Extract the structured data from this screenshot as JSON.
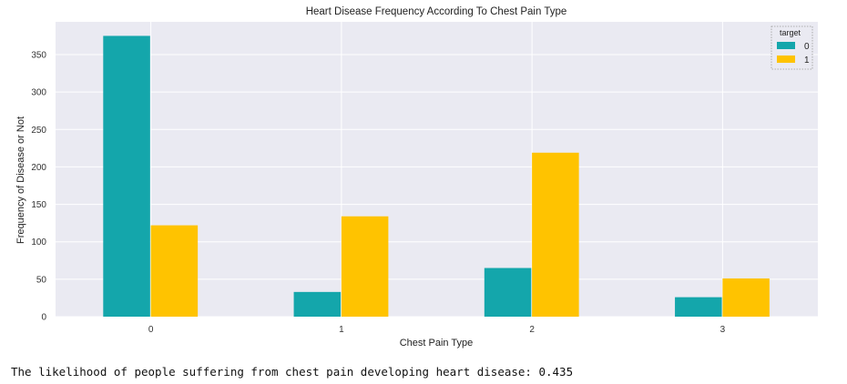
{
  "chart_data": {
    "type": "bar",
    "title": "Heart Disease Frequency According To Chest Pain Type",
    "xlabel": "Chest Pain Type",
    "ylabel": "Frequency of Disease or Not",
    "categories": [
      "0",
      "1",
      "2",
      "3"
    ],
    "series": [
      {
        "name": "0",
        "values": [
          375,
          33,
          65,
          26
        ],
        "color": "#14a6ab"
      },
      {
        "name": "1",
        "values": [
          122,
          134,
          219,
          51
        ],
        "color": "#ffc300"
      }
    ],
    "ylim": [
      0,
      393.75
    ],
    "yticks": [
      0,
      50,
      100,
      150,
      200,
      250,
      300,
      350
    ],
    "grid": true,
    "legend": {
      "title": "target",
      "position": "top-right"
    },
    "style": {
      "background": "#eaeaf2",
      "grid_color": "#ffffff"
    }
  },
  "output": {
    "text": "The likelihood of people suffering from chest pain developing heart disease: 0.435"
  }
}
